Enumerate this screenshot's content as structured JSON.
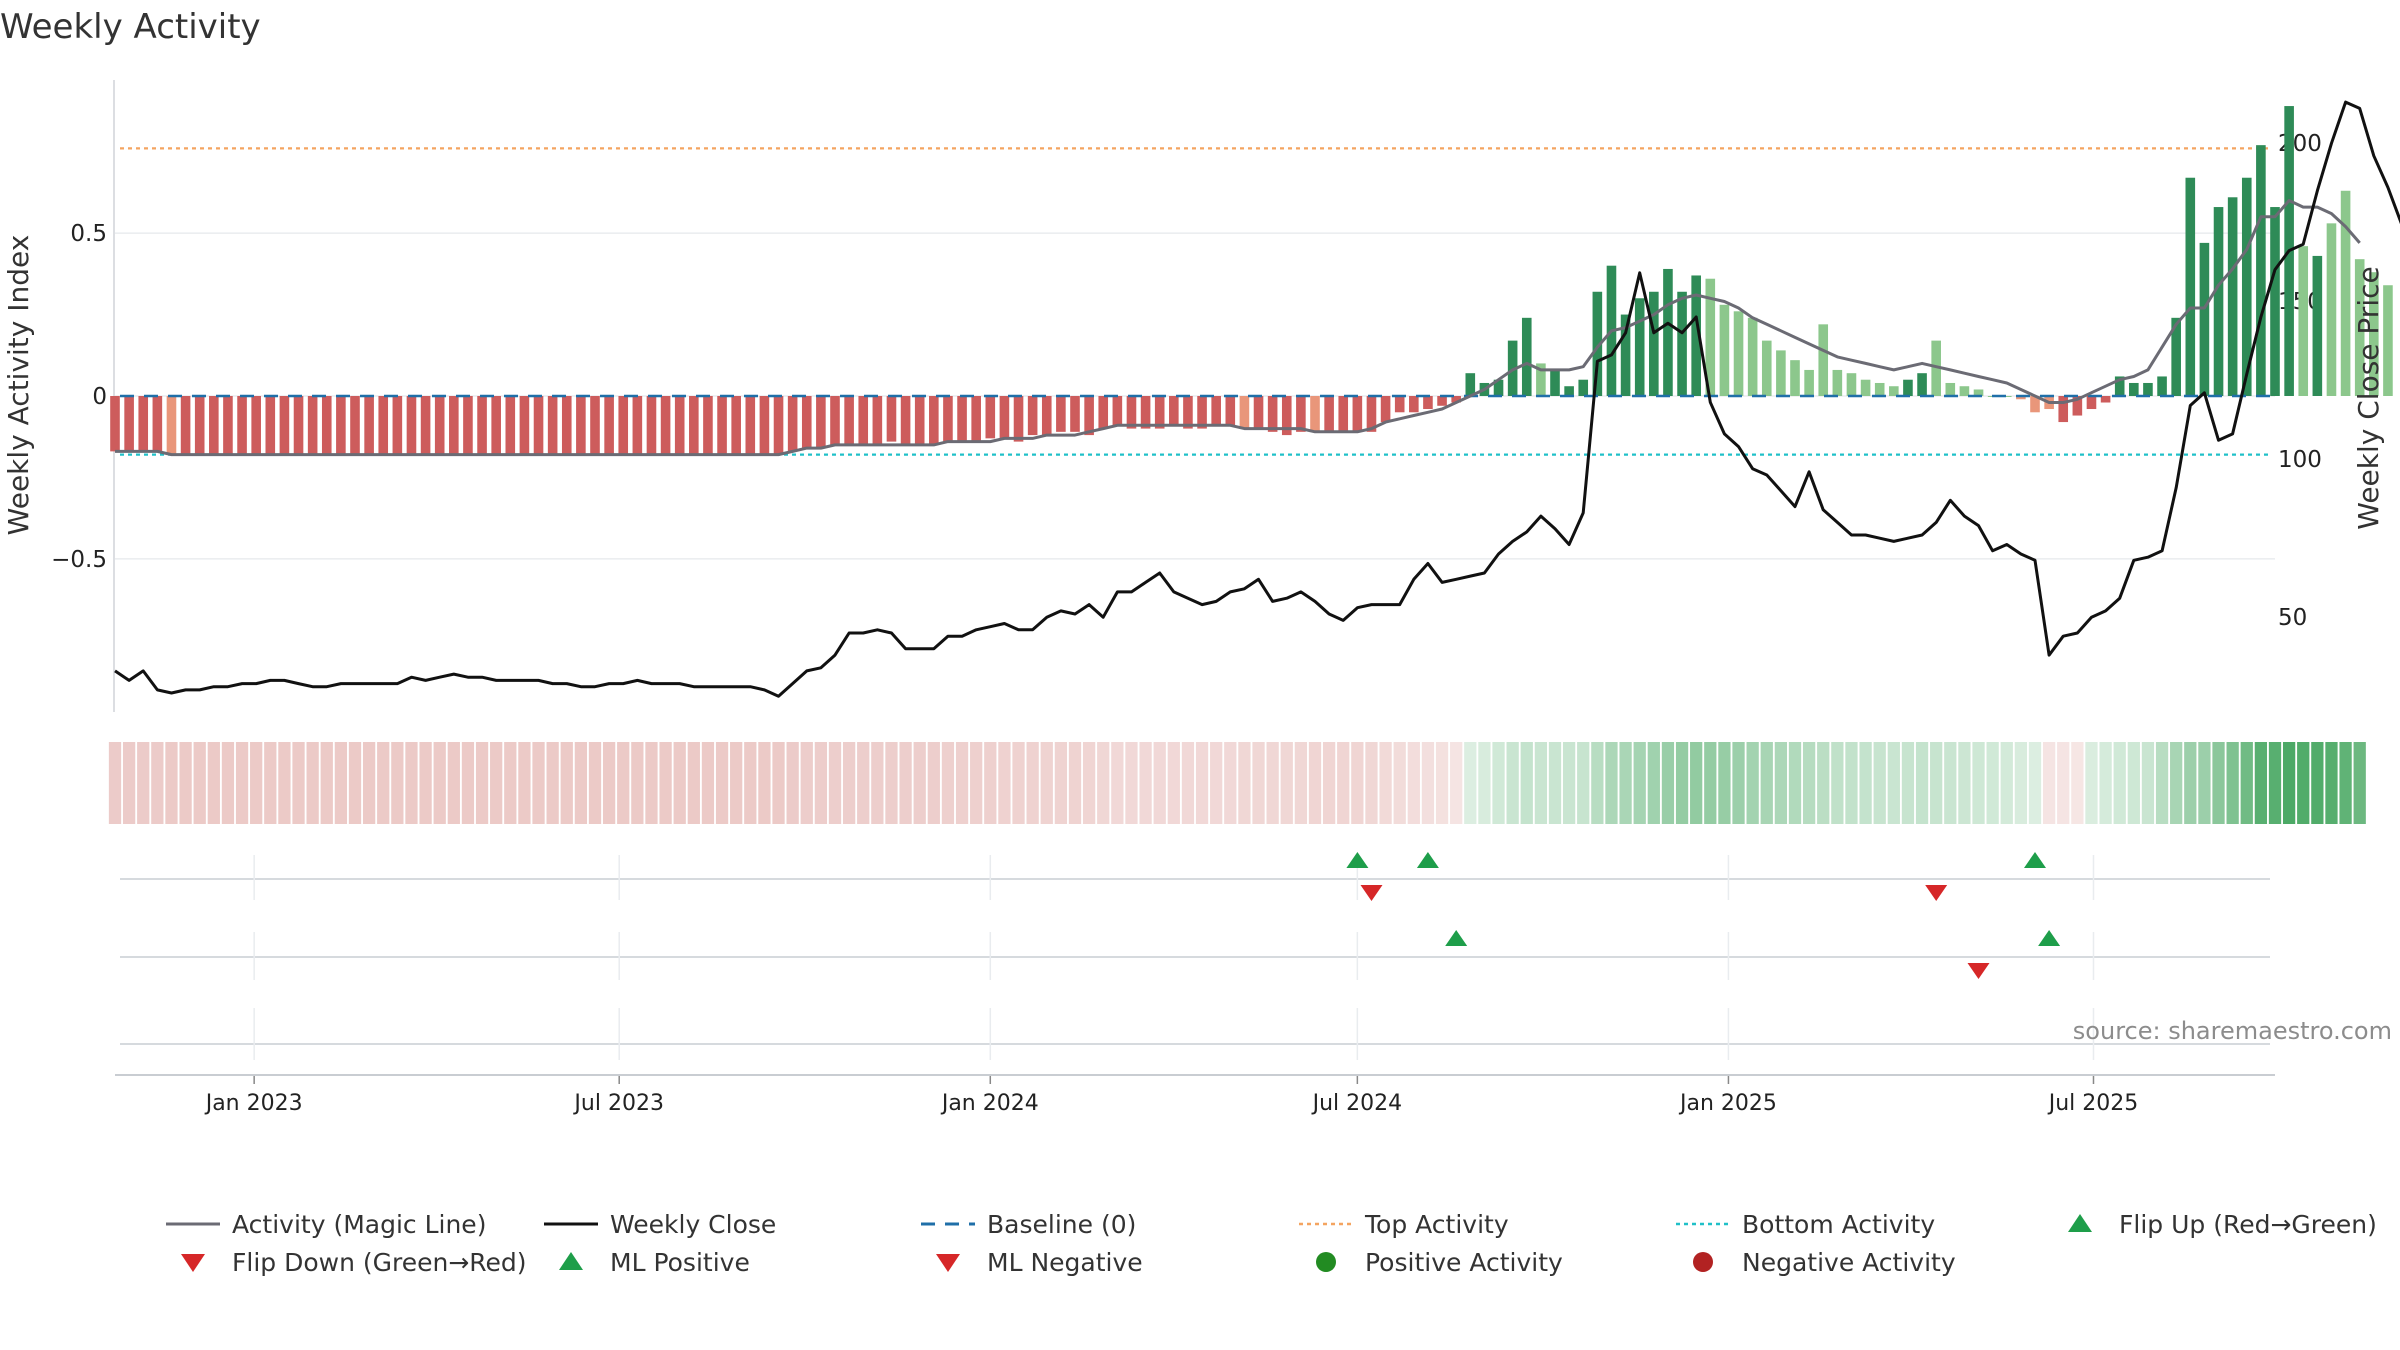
{
  "chart_data": {
    "type": "bar",
    "title": "Weekly Activity",
    "ylabel": "Weekly Activity Index",
    "y2label": "Weekly Close Price",
    "ylim": [
      -0.97,
      0.97
    ],
    "y2lim": [
      20,
      220
    ],
    "yticks": [
      {
        "v": 0.5,
        "label": "0.5"
      },
      {
        "v": 0,
        "label": "0"
      },
      {
        "v": -0.5,
        "label": "−0.5"
      }
    ],
    "y2ticks": [
      {
        "v": 200,
        "label": "200"
      },
      {
        "v": 150,
        "label": "150"
      },
      {
        "v": 100,
        "label": "100"
      },
      {
        "v": 50,
        "label": "50"
      }
    ],
    "x_start": "2022-10-24",
    "x_end": "2025-09-29",
    "xticks": [
      {
        "date": "2023-01-01",
        "label": "Jan 2023"
      },
      {
        "date": "2023-07-01",
        "label": "Jul 2023"
      },
      {
        "date": "2024-01-01",
        "label": "Jan 2024"
      },
      {
        "date": "2024-07-01",
        "label": "Jul 2024"
      },
      {
        "date": "2025-01-01",
        "label": "Jan 2025"
      },
      {
        "date": "2025-07-01",
        "label": "Jul 2025"
      }
    ],
    "start_date": "2022-10-24",
    "top_activity": 0.76,
    "bottom_activity": -0.18,
    "baseline": 0,
    "activity": [
      -0.17,
      -0.17,
      -0.17,
      -0.17,
      -0.18,
      -0.18,
      -0.18,
      -0.18,
      -0.18,
      -0.18,
      -0.18,
      -0.18,
      -0.18,
      -0.18,
      -0.18,
      -0.18,
      -0.18,
      -0.18,
      -0.18,
      -0.18,
      -0.18,
      -0.18,
      -0.18,
      -0.18,
      -0.18,
      -0.18,
      -0.18,
      -0.18,
      -0.18,
      -0.18,
      -0.18,
      -0.18,
      -0.18,
      -0.18,
      -0.18,
      -0.18,
      -0.18,
      -0.18,
      -0.18,
      -0.18,
      -0.18,
      -0.18,
      -0.18,
      -0.18,
      -0.18,
      -0.18,
      -0.18,
      -0.18,
      -0.17,
      -0.16,
      -0.16,
      -0.15,
      -0.15,
      -0.15,
      -0.15,
      -0.14,
      -0.15,
      -0.15,
      -0.15,
      -0.14,
      -0.14,
      -0.14,
      -0.13,
      -0.13,
      -0.14,
      -0.12,
      -0.12,
      -0.11,
      -0.11,
      -0.12,
      -0.1,
      -0.09,
      -0.1,
      -0.1,
      -0.1,
      -0.09,
      -0.1,
      -0.1,
      -0.09,
      -0.09,
      -0.1,
      -0.1,
      -0.11,
      -0.12,
      -0.11,
      -0.11,
      -0.11,
      -0.11,
      -0.11,
      -0.11,
      -0.08,
      -0.05,
      -0.05,
      -0.04,
      -0.03,
      -0.02,
      0.07,
      0.04,
      0.05,
      0.17,
      0.24,
      0.1,
      0.08,
      0.03,
      0.05,
      0.32,
      0.4,
      0.25,
      0.3,
      0.32,
      0.39,
      0.32,
      0.37,
      0.36,
      0.28,
      0.26,
      0.24,
      0.17,
      0.14,
      0.11,
      0.08,
      0.22,
      0.08,
      0.07,
      0.05,
      0.04,
      0.03,
      0.05,
      0.07,
      0.17,
      0.04,
      0.03,
      0.02,
      0.0,
      0.0,
      -0.01,
      -0.05,
      -0.04,
      -0.08,
      -0.06,
      -0.04,
      -0.02,
      0.06,
      0.04,
      0.04,
      0.06,
      0.24,
      0.67,
      0.47,
      0.58,
      0.61,
      0.67,
      0.77,
      0.58,
      0.89,
      0.46,
      0.43,
      0.53,
      0.63,
      0.42,
      0.38,
      0.34
    ],
    "magic_line": [
      -0.17,
      -0.17,
      -0.17,
      -0.17,
      -0.18,
      -0.18,
      -0.18,
      -0.18,
      -0.18,
      -0.18,
      -0.18,
      -0.18,
      -0.18,
      -0.18,
      -0.18,
      -0.18,
      -0.18,
      -0.18,
      -0.18,
      -0.18,
      -0.18,
      -0.18,
      -0.18,
      -0.18,
      -0.18,
      -0.18,
      -0.18,
      -0.18,
      -0.18,
      -0.18,
      -0.18,
      -0.18,
      -0.18,
      -0.18,
      -0.18,
      -0.18,
      -0.18,
      -0.18,
      -0.18,
      -0.18,
      -0.18,
      -0.18,
      -0.18,
      -0.18,
      -0.18,
      -0.18,
      -0.18,
      -0.18,
      -0.17,
      -0.16,
      -0.16,
      -0.15,
      -0.15,
      -0.15,
      -0.15,
      -0.15,
      -0.15,
      -0.15,
      -0.15,
      -0.14,
      -0.14,
      -0.14,
      -0.14,
      -0.13,
      -0.13,
      -0.13,
      -0.12,
      -0.12,
      -0.12,
      -0.11,
      -0.1,
      -0.09,
      -0.09,
      -0.09,
      -0.09,
      -0.09,
      -0.09,
      -0.09,
      -0.09,
      -0.09,
      -0.1,
      -0.1,
      -0.1,
      -0.1,
      -0.1,
      -0.11,
      -0.11,
      -0.11,
      -0.11,
      -0.1,
      -0.08,
      -0.07,
      -0.06,
      -0.05,
      -0.04,
      -0.02,
      0.0,
      0.02,
      0.05,
      0.08,
      0.1,
      0.08,
      0.08,
      0.08,
      0.09,
      0.15,
      0.2,
      0.21,
      0.23,
      0.25,
      0.28,
      0.3,
      0.31,
      0.3,
      0.29,
      0.27,
      0.24,
      0.22,
      0.2,
      0.18,
      0.16,
      0.14,
      0.12,
      0.11,
      0.1,
      0.09,
      0.08,
      0.09,
      0.1,
      0.09,
      0.08,
      0.07,
      0.06,
      0.05,
      0.04,
      0.02,
      0.0,
      -0.02,
      -0.02,
      -0.01,
      0.01,
      0.03,
      0.05,
      0.06,
      0.08,
      0.15,
      0.22,
      0.27,
      0.27,
      0.34,
      0.39,
      0.45,
      0.55,
      0.55,
      0.6,
      0.58,
      0.58,
      0.56,
      0.52,
      0.47
    ],
    "close": [
      33,
      30,
      33,
      27,
      26,
      27,
      27,
      28,
      28,
      29,
      29,
      30,
      30,
      29,
      28,
      28,
      29,
      29,
      29,
      29,
      29,
      31,
      30,
      31,
      32,
      31,
      31,
      30,
      30,
      30,
      30,
      29,
      29,
      28,
      28,
      29,
      29,
      30,
      29,
      29,
      29,
      28,
      28,
      28,
      28,
      28,
      27,
      25,
      29,
      33,
      34,
      38,
      45,
      45,
      46,
      45,
      40,
      40,
      40,
      44,
      44,
      46,
      47,
      48,
      46,
      46,
      50,
      52,
      51,
      54,
      50,
      58,
      58,
      61,
      64,
      58,
      56,
      54,
      55,
      58,
      59,
      62,
      55,
      56,
      58,
      55,
      51,
      49,
      53,
      54,
      54,
      54,
      62,
      67,
      61,
      62,
      63,
      64,
      70,
      74,
      77,
      82,
      78,
      73,
      83,
      131,
      133,
      140,
      159,
      140,
      143,
      140,
      145,
      118,
      108,
      104,
      97,
      95,
      90,
      85,
      96,
      84,
      80,
      76,
      76,
      75,
      74,
      75,
      76,
      80,
      87,
      82,
      79,
      71,
      73,
      70,
      68,
      38,
      44,
      45,
      50,
      52,
      56,
      68,
      69,
      71,
      91,
      117,
      121,
      106,
      108,
      127,
      145,
      160,
      166,
      168,
      185,
      200,
      213,
      211,
      196,
      186,
      174
    ],
    "heat_strip": [
      -0.17,
      -0.17,
      -0.17,
      -0.17,
      -0.18,
      -0.18,
      -0.18,
      -0.18,
      -0.18,
      -0.18,
      -0.18,
      -0.18,
      -0.18,
      -0.18,
      -0.18,
      -0.18,
      -0.18,
      -0.18,
      -0.18,
      -0.18,
      -0.18,
      -0.18,
      -0.18,
      -0.18,
      -0.18,
      -0.18,
      -0.18,
      -0.18,
      -0.18,
      -0.18,
      -0.18,
      -0.18,
      -0.18,
      -0.18,
      -0.18,
      -0.18,
      -0.18,
      -0.18,
      -0.18,
      -0.18,
      -0.18,
      -0.18,
      -0.18,
      -0.18,
      -0.18,
      -0.18,
      -0.18,
      -0.18,
      -0.17,
      -0.16,
      -0.16,
      -0.15,
      -0.15,
      -0.15,
      -0.15,
      -0.15,
      -0.15,
      -0.15,
      -0.15,
      -0.14,
      -0.14,
      -0.14,
      -0.14,
      -0.13,
      -0.13,
      -0.13,
      -0.12,
      -0.12,
      -0.12,
      -0.11,
      -0.1,
      -0.09,
      -0.09,
      -0.09,
      -0.09,
      -0.09,
      -0.09,
      -0.09,
      -0.09,
      -0.09,
      -0.1,
      -0.1,
      -0.1,
      -0.1,
      -0.1,
      -0.11,
      -0.11,
      -0.11,
      -0.11,
      -0.1,
      -0.08,
      -0.07,
      -0.06,
      -0.05,
      -0.04,
      -0.02,
      0.0,
      0.02,
      0.05,
      0.08,
      0.1,
      0.08,
      0.08,
      0.08,
      0.09,
      0.15,
      0.2,
      0.21,
      0.23,
      0.25,
      0.28,
      0.3,
      0.31,
      0.3,
      0.29,
      0.27,
      0.24,
      0.22,
      0.2,
      0.18,
      0.16,
      0.14,
      0.12,
      0.11,
      0.1,
      0.09,
      0.08,
      0.09,
      0.1,
      0.09,
      0.08,
      0.07,
      0.06,
      0.05,
      0.04,
      0.02,
      0.0,
      -0.02,
      -0.02,
      -0.01,
      0.01,
      0.03,
      0.05,
      0.06,
      0.08,
      0.15,
      0.22,
      0.27,
      0.27,
      0.34,
      0.39,
      0.45,
      0.55,
      0.55,
      0.6,
      0.58,
      0.58,
      0.56,
      0.52,
      0.47
    ],
    "markers": {
      "flip_up": [
        "2024-07-01",
        "2024-08-05",
        "2025-06-02"
      ],
      "flip_down": [
        "2024-07-08",
        "2025-04-14"
      ],
      "ml_positive": [
        "2024-08-19",
        "2025-06-09"
      ],
      "ml_negative": [
        "2025-05-05"
      ],
      "positive_activity": [],
      "negative_activity": []
    },
    "source": "source: sharemaestro.com",
    "legend": [
      {
        "key": "magic",
        "label": "Activity (Magic Line)"
      },
      {
        "key": "close",
        "label": "Weekly Close"
      },
      {
        "key": "baseline",
        "label": "Baseline (0)"
      },
      {
        "key": "top",
        "label": "Top Activity"
      },
      {
        "key": "bottom",
        "label": "Bottom Activity"
      },
      {
        "key": "flip_up",
        "label": "Flip Up (Red→Green)"
      },
      {
        "key": "flip_down",
        "label": "Flip Down (Green→Red)"
      },
      {
        "key": "ml_pos",
        "label": "ML Positive"
      },
      {
        "key": "ml_neg",
        "label": "ML Negative"
      },
      {
        "key": "pos_act",
        "label": "Positive Activity"
      },
      {
        "key": "neg_act",
        "label": "Negative Activity"
      }
    ]
  },
  "colors": {
    "pos_dark": "#2e8b57",
    "pos_light": "#8cc78c",
    "neg_dark": "#cd5c5c",
    "neg_light": "#e9967a",
    "magic_line": "#6b6b74",
    "close_line": "#111111",
    "baseline": "#1f6fa8",
    "top_line": "#f4a460",
    "bottom_line": "#20c0c8",
    "marker_up": "#1e9e4a",
    "marker_down": "#d62728",
    "dot_pos": "#228b22",
    "dot_neg": "#b22222",
    "grid": "#e6e8ec",
    "source": "#8c8c8c"
  }
}
